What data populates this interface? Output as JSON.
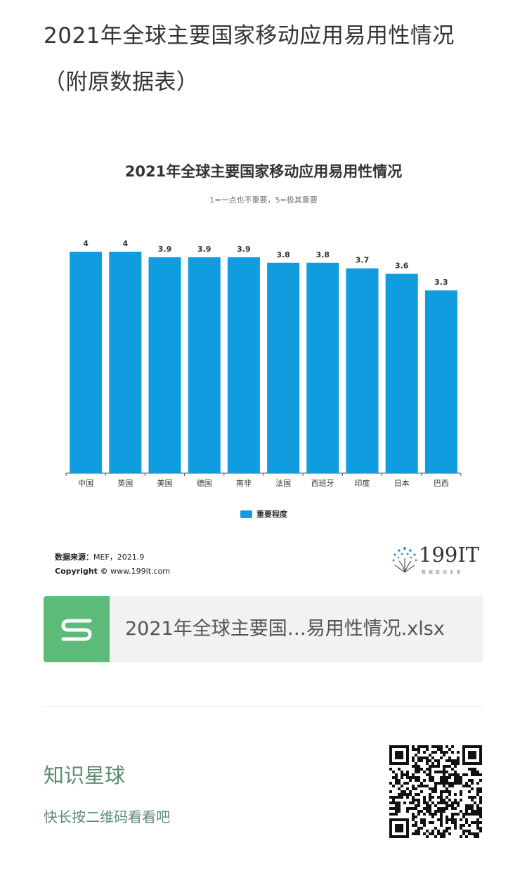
{
  "page": {
    "title": "2021年全球主要国家移动应用易用性情况（附原数据表）"
  },
  "chart_data": {
    "type": "bar",
    "title": "2021年全球主要国家移动应用易用性情况",
    "subtitle": "1=一点也不重要，5=极其重要",
    "categories": [
      "中国",
      "英国",
      "美国",
      "德国",
      "南非",
      "法国",
      "西班牙",
      "印度",
      "日本",
      "巴西"
    ],
    "series": [
      {
        "name": "重要程度",
        "values": [
          4,
          4,
          3.9,
          3.9,
          3.9,
          3.8,
          3.8,
          3.7,
          3.6,
          3.3
        ],
        "color": "#0f9de0"
      }
    ],
    "value_labels": [
      "4",
      "4",
      "3.9",
      "3.9",
      "3.9",
      "3.8",
      "3.8",
      "3.7",
      "3.6",
      "3.3"
    ],
    "ylim": [
      0,
      4
    ],
    "grid": false,
    "legend_position": "bottom"
  },
  "chart_footer": {
    "source_label": "数据来源：",
    "source_value": "MEF，2021.9",
    "copyright_label": "Copyright ©",
    "copyright_value": "www.199it.com",
    "logo_text": "199IT",
    "logo_tagline": "数 据 驱 动 未 来"
  },
  "attachment": {
    "file_name": "2021年全球主要国…易用性情况.xlsx",
    "icon": "spreadsheet-s-icon",
    "icon_color": "#5cbb79"
  },
  "promo": {
    "title": "知识星球",
    "subtitle": "快长按二维码看看吧",
    "accent_color": "#5b8c6e",
    "qr_icon": "qr-code-icon"
  }
}
